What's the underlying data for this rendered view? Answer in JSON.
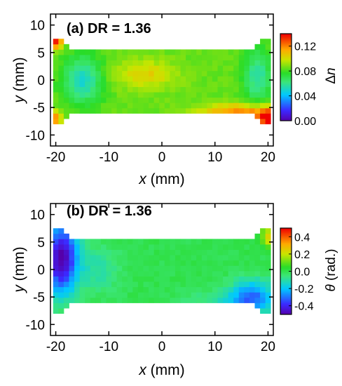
{
  "chart_data": [
    {
      "type": "heatmap",
      "title": "(a) DR = 1.36",
      "xlabel": "x (mm)",
      "ylabel": "y (mm)",
      "xlim": [
        -21,
        21
      ],
      "ylim": [
        -12,
        12
      ],
      "xticks": [
        -20,
        -10,
        0,
        10,
        20
      ],
      "yticks": [
        10,
        5,
        0,
        -5,
        -10
      ],
      "colorbar": {
        "label": "Δn",
        "min": 0.0,
        "max": 0.14,
        "ticks": [
          "0.00",
          "0.04",
          "0.08",
          "0.12"
        ]
      },
      "grid": {
        "x": [
          -20.5,
          20.5
        ],
        "y": [
          -8.0,
          7.5
        ],
        "nx": 41,
        "ny": 16
      },
      "data_description": "Mostly ~0.08–0.09 across the strip; ~0.05 minima near x=-15,y=0 and x=18,y=0; ~0.10 near x=-3,y=1; ~0.11–0.13 band near y=-5 to -7 for x between 8 and 20; >0.13 at x=-20,y=7 and x=20,y=-7"
    },
    {
      "type": "heatmap",
      "title": "(b) DR = 1.36",
      "xlabel": "x (mm)",
      "ylabel": "y (mm)",
      "xlim": [
        -21,
        21
      ],
      "ylim": [
        -12,
        12
      ],
      "xticks": [
        -20,
        -10,
        0,
        10,
        20
      ],
      "yticks": [
        10,
        5,
        0,
        -5,
        -10
      ],
      "colorbar": {
        "label": "θ (rad.)",
        "min": -0.5,
        "max": 0.5,
        "ticks": [
          "0.4",
          "0.2",
          "0.0",
          "-0.2",
          "-0.4"
        ]
      },
      "grid": {
        "x": [
          -20.5,
          20.5
        ],
        "y": [
          -8.0,
          7.5
        ],
        "nx": 41,
        "ny": 16
      },
      "data_description": "Mostly ~0.0 across the strip; strong negative ~-0.45 at x=-19,y=2; negative ~-0.3 at x=17,y=-5; slight positive ~0.25 at x=20,y=6"
    }
  ],
  "panels": [
    {
      "title": "(a) DR = 1.36",
      "xlabel_var": "x",
      "xlabel_unit": " (mm)",
      "ylabel_var": "y",
      "ylabel_unit": " (mm)",
      "xtick_labels": [
        "-20",
        "-10",
        "0",
        "10",
        "20"
      ],
      "ytick_labels": [
        "10",
        "5",
        "0",
        "-5",
        "-10"
      ],
      "cb_tick_labels": [
        "0.12",
        "0.08",
        "0.04",
        "0.00"
      ],
      "cb_label_var": "Δ",
      "cb_label_sub": "n",
      "cb_label_unit": ""
    },
    {
      "title": "(b) DR = 1.36",
      "xlabel_var": "x",
      "xlabel_unit": " (mm)",
      "ylabel_var": "y",
      "ylabel_unit": " (mm)",
      "xtick_labels": [
        "-20",
        "-10",
        "0",
        "10",
        "20"
      ],
      "ytick_labels": [
        "10",
        "5",
        "0",
        "-5",
        "-10"
      ],
      "cb_tick_labels": [
        "0.4",
        "0.2",
        "0.0",
        "-0.2",
        "-0.4"
      ],
      "cb_label_var": "θ",
      "cb_label_sub": "",
      "cb_label_unit": " (rad.)"
    }
  ]
}
